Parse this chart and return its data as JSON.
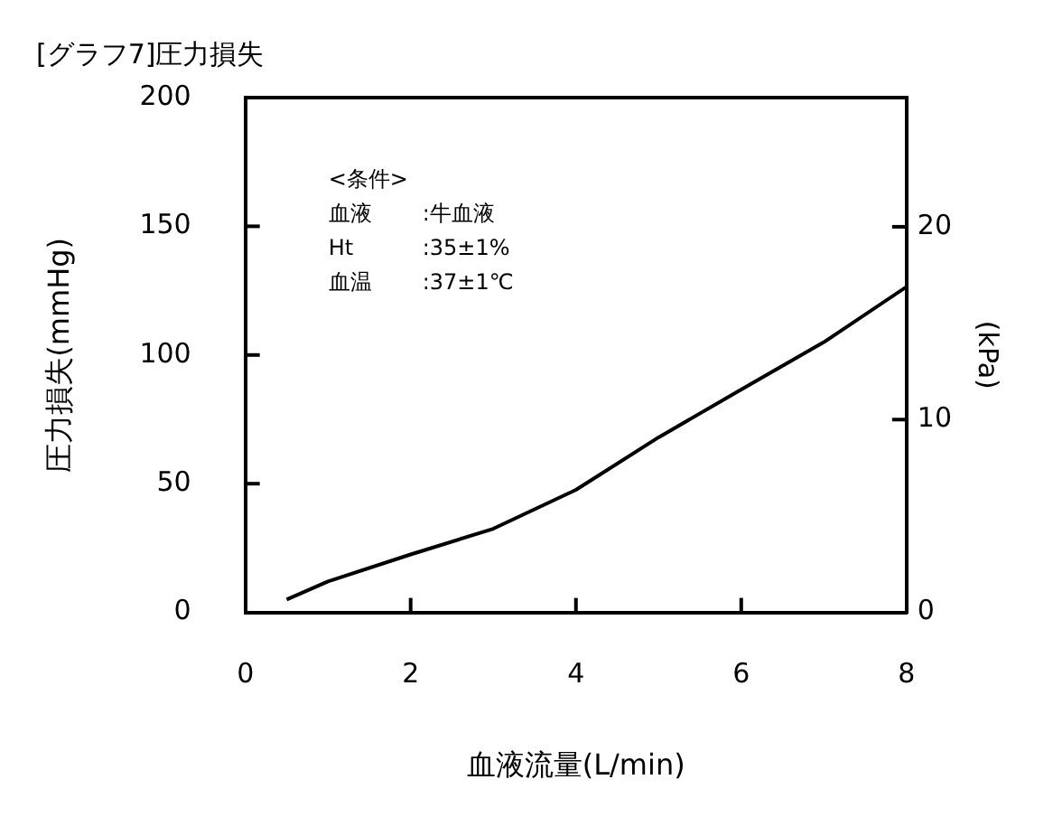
{
  "chart_data": {
    "type": "line",
    "title": "[グラフ7]圧力損失",
    "xlabel": "血液流量(L/min)",
    "ylabel": "圧力損失(mmHg)",
    "y2label": "(kPa)",
    "x": [
      0.5,
      1,
      2,
      3,
      4,
      5,
      6,
      7,
      8
    ],
    "series": [
      {
        "color": "#000000",
        "values": [
          5,
          12,
          22.5,
          32.5,
          47.6,
          68,
          86.6,
          105,
          126.5
        ]
      }
    ],
    "xlim": [
      0,
      8
    ],
    "xticks": [
      0,
      2,
      4,
      6,
      8
    ],
    "ylim": [
      0,
      200
    ],
    "yticks": [
      0,
      50,
      100,
      150,
      200
    ],
    "y2lim": [
      0,
      26.7
    ],
    "y2ticks": [
      0,
      10,
      20
    ],
    "annotations": [
      "<条件>",
      "血液　:牛血液",
      "Ht　:35±1%",
      "血温　:37±1℃"
    ],
    "grid": false,
    "legend": false,
    "marker": "none",
    "line_style": "solid"
  }
}
